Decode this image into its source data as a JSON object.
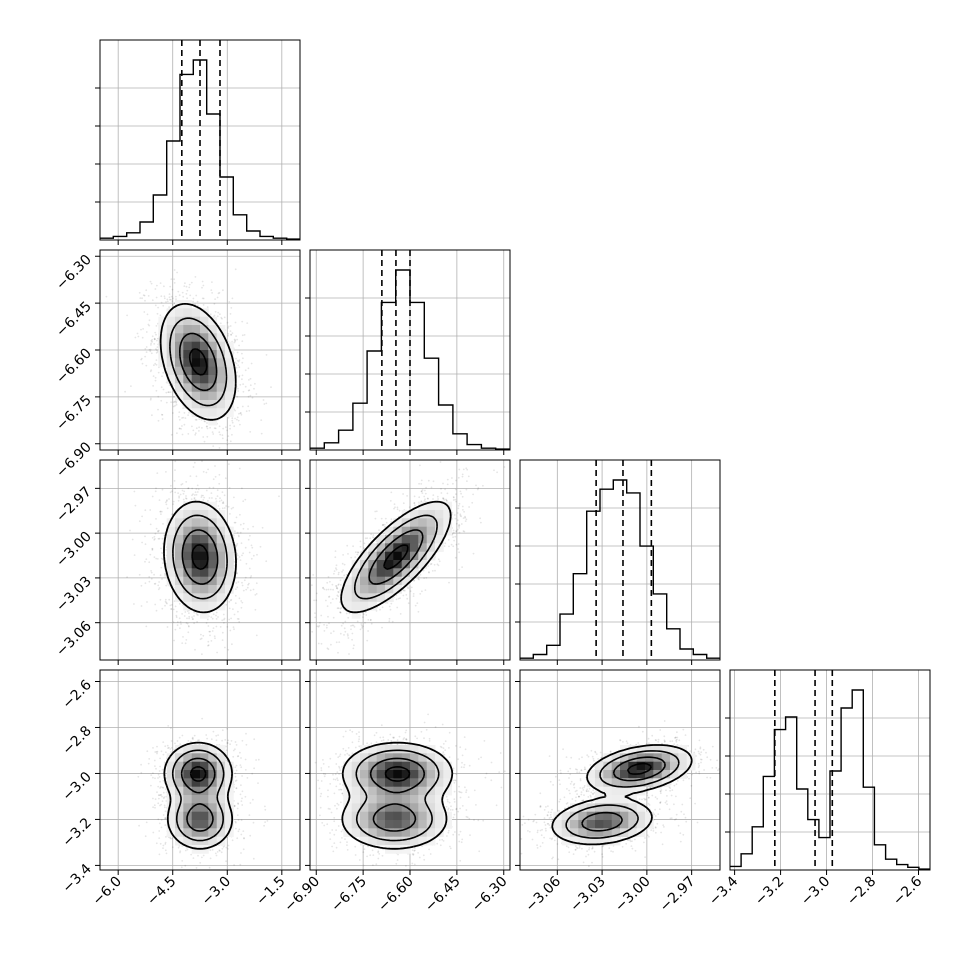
{
  "chart_data": {
    "type": "corner",
    "title": "",
    "grid": true,
    "parameters": [
      {
        "range": [
          -6.5,
          -1.0
        ],
        "ticks": [
          -6.0,
          -4.5,
          -3.0,
          -1.5
        ],
        "tick_labels": [
          "−6.0",
          "−4.5",
          "−3.0",
          "−1.5"
        ],
        "quantiles": [
          -4.25,
          -3.75,
          -3.2
        ]
      },
      {
        "range": [
          -6.92,
          -6.28
        ],
        "ticks": [
          -6.9,
          -6.75,
          -6.6,
          -6.45,
          -6.3
        ],
        "tick_labels": [
          "−6.90",
          "−6.75",
          "−6.60",
          "−6.45",
          "−6.30"
        ],
        "quantiles": [
          -6.69,
          -6.645,
          -6.6
        ]
      },
      {
        "range": [
          -3.085,
          -2.951
        ],
        "ticks": [
          -3.06,
          -3.03,
          -3.0,
          -2.97
        ],
        "tick_labels": [
          "−3.06",
          "−3.03",
          "−3.00",
          "−2.97"
        ],
        "quantiles": [
          -3.034,
          -3.016,
          -2.997
        ]
      },
      {
        "range": [
          -3.42,
          -2.55
        ],
        "ticks": [
          -3.4,
          -3.2,
          -3.0,
          -2.8,
          -2.6
        ],
        "tick_labels": [
          "−3.4",
          "−3.2",
          "−3.0",
          "−2.8",
          "−2.6"
        ],
        "quantiles": [
          -3.225,
          -3.05,
          -2.975
        ]
      }
    ],
    "histograms": [
      {
        "edges_from": -6.5,
        "edges_to": -1.0,
        "counts": [
          1,
          2,
          4,
          10,
          25,
          55,
          92,
          100,
          70,
          35,
          14,
          5,
          2,
          1,
          0.5
        ]
      },
      {
        "edges_from": -6.92,
        "edges_to": -6.28,
        "counts": [
          1,
          4,
          11,
          26,
          55,
          82,
          100,
          82,
          51,
          25,
          9,
          3,
          1,
          0.5
        ]
      },
      {
        "edges_from": -3.085,
        "edges_to": -2.951,
        "counts": [
          1,
          3,
          8,
          25,
          47,
          81,
          93,
          98,
          91,
          62,
          36,
          17,
          6,
          3,
          1
        ]
      },
      {
        "edges_from": -3.42,
        "edges_to": -2.55,
        "counts": [
          2,
          9,
          24,
          52,
          78,
          85,
          45,
          28,
          18,
          55,
          90,
          100,
          46,
          14,
          6,
          3,
          1.5,
          0.5
        ]
      }
    ],
    "panels_2d": [
      {
        "row": 1,
        "col": 0,
        "peaks": [
          {
            "x": -3.8,
            "y": -6.638,
            "sx": 0.5,
            "sy": 0.09,
            "rho": -0.35,
            "w": 1
          }
        ]
      },
      {
        "row": 2,
        "col": 0,
        "peaks": [
          {
            "x": -3.75,
            "y": -3.016,
            "sx": 0.48,
            "sy": 0.018,
            "rho": -0.1,
            "w": 1
          }
        ]
      },
      {
        "row": 2,
        "col": 1,
        "peaks": [
          {
            "x": -6.645,
            "y": -3.016,
            "sx": 0.085,
            "sy": 0.018,
            "rho": 0.75,
            "w": 1
          }
        ]
      },
      {
        "row": 3,
        "col": 0,
        "peaks": [
          {
            "x": -3.8,
            "y": -3.0,
            "sx": 0.45,
            "sy": 0.065,
            "rho": 0,
            "w": 0.55
          },
          {
            "x": -3.75,
            "y": -3.2,
            "sx": 0.45,
            "sy": 0.065,
            "rho": 0,
            "w": 0.45
          }
        ]
      },
      {
        "row": 3,
        "col": 1,
        "peaks": [
          {
            "x": -6.64,
            "y": -3.0,
            "sx": 0.085,
            "sy": 0.065,
            "rho": 0,
            "w": 0.55
          },
          {
            "x": -6.65,
            "y": -3.2,
            "sx": 0.085,
            "sy": 0.065,
            "rho": 0,
            "w": 0.45
          }
        ]
      },
      {
        "row": 3,
        "col": 2,
        "peaks": [
          {
            "x": -3.005,
            "y": -2.98,
            "sx": 0.017,
            "sy": 0.05,
            "rho": 0.35,
            "w": 0.55
          },
          {
            "x": -3.03,
            "y": -3.21,
            "sx": 0.017,
            "sy": 0.05,
            "rho": 0.2,
            "w": 0.45
          }
        ]
      }
    ]
  }
}
